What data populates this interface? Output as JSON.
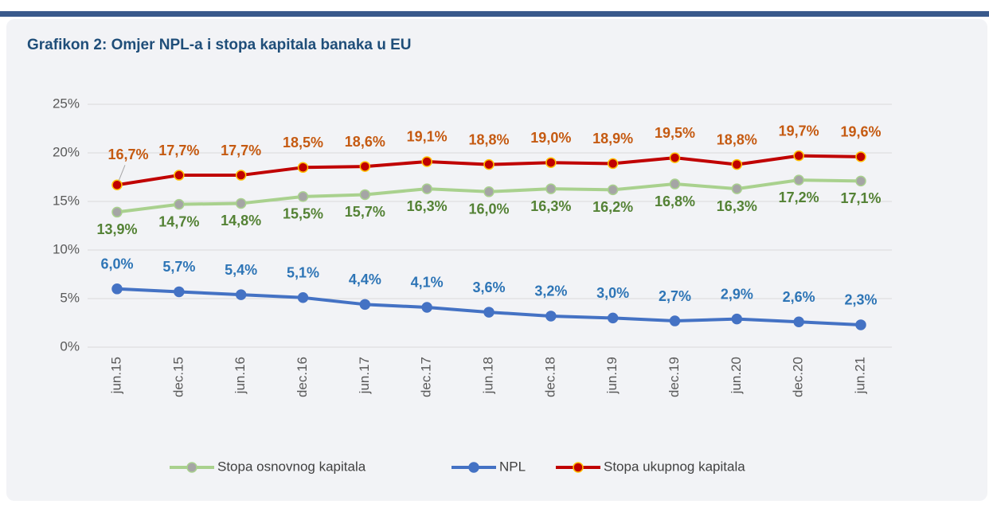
{
  "chart_data": {
    "type": "line",
    "title": "Grafikon 2: Omjer NPL-a i stopa kapitala banaka u EU",
    "categories": [
      "jun.15",
      "dec.15",
      "jun.16",
      "dec.16",
      "jun.17",
      "dec.17",
      "jun.18",
      "dec.18",
      "jun.19",
      "dec.19",
      "jun.20",
      "dec.20",
      "jun.21"
    ],
    "ylim": [
      0,
      25
    ],
    "yticks": [
      {
        "value": 0,
        "label": "0%"
      },
      {
        "value": 5,
        "label": "5%"
      },
      {
        "value": 10,
        "label": "10%"
      },
      {
        "value": 15,
        "label": "15%"
      },
      {
        "value": 20,
        "label": "20%"
      },
      {
        "value": 25,
        "label": "25%"
      }
    ],
    "grid": true,
    "legend": "bottom",
    "series": [
      {
        "name": "Stopa osnovnog kapitala",
        "color": "#a9d18e",
        "values": [
          13.9,
          14.7,
          14.8,
          15.5,
          15.7,
          16.3,
          16.0,
          16.3,
          16.2,
          16.8,
          16.3,
          17.2,
          17.1
        ],
        "value_labels": [
          "13,9%",
          "14,7%",
          "14,8%",
          "15,5%",
          "15,7%",
          "16,3%",
          "16,0%",
          "16,3%",
          "16,2%",
          "16,8%",
          "16,3%",
          "17,2%",
          "17,1%"
        ]
      },
      {
        "name": "NPL",
        "color": "#4472c4",
        "values": [
          6.0,
          5.7,
          5.4,
          5.1,
          4.4,
          4.1,
          3.6,
          3.2,
          3.0,
          2.7,
          2.9,
          2.6,
          2.3
        ],
        "value_labels": [
          "6,0%",
          "5,7%",
          "5,4%",
          "5,1%",
          "4,4%",
          "4,1%",
          "3,6%",
          "3,2%",
          "3,0%",
          "2,7%",
          "2,9%",
          "2,6%",
          "2,3%"
        ]
      },
      {
        "name": "Stopa ukupnog kapitala",
        "color": "#c00000",
        "values": [
          16.7,
          17.7,
          17.7,
          18.5,
          18.6,
          19.1,
          18.8,
          19.0,
          18.9,
          19.5,
          18.8,
          19.7,
          19.6
        ],
        "value_labels": [
          "16,7%",
          "17,7%",
          "17,7%",
          "18,5%",
          "18,6%",
          "19,1%",
          "18,8%",
          "19,0%",
          "18,9%",
          "19,5%",
          "18,8%",
          "19,7%",
          "19,6%"
        ]
      }
    ]
  }
}
